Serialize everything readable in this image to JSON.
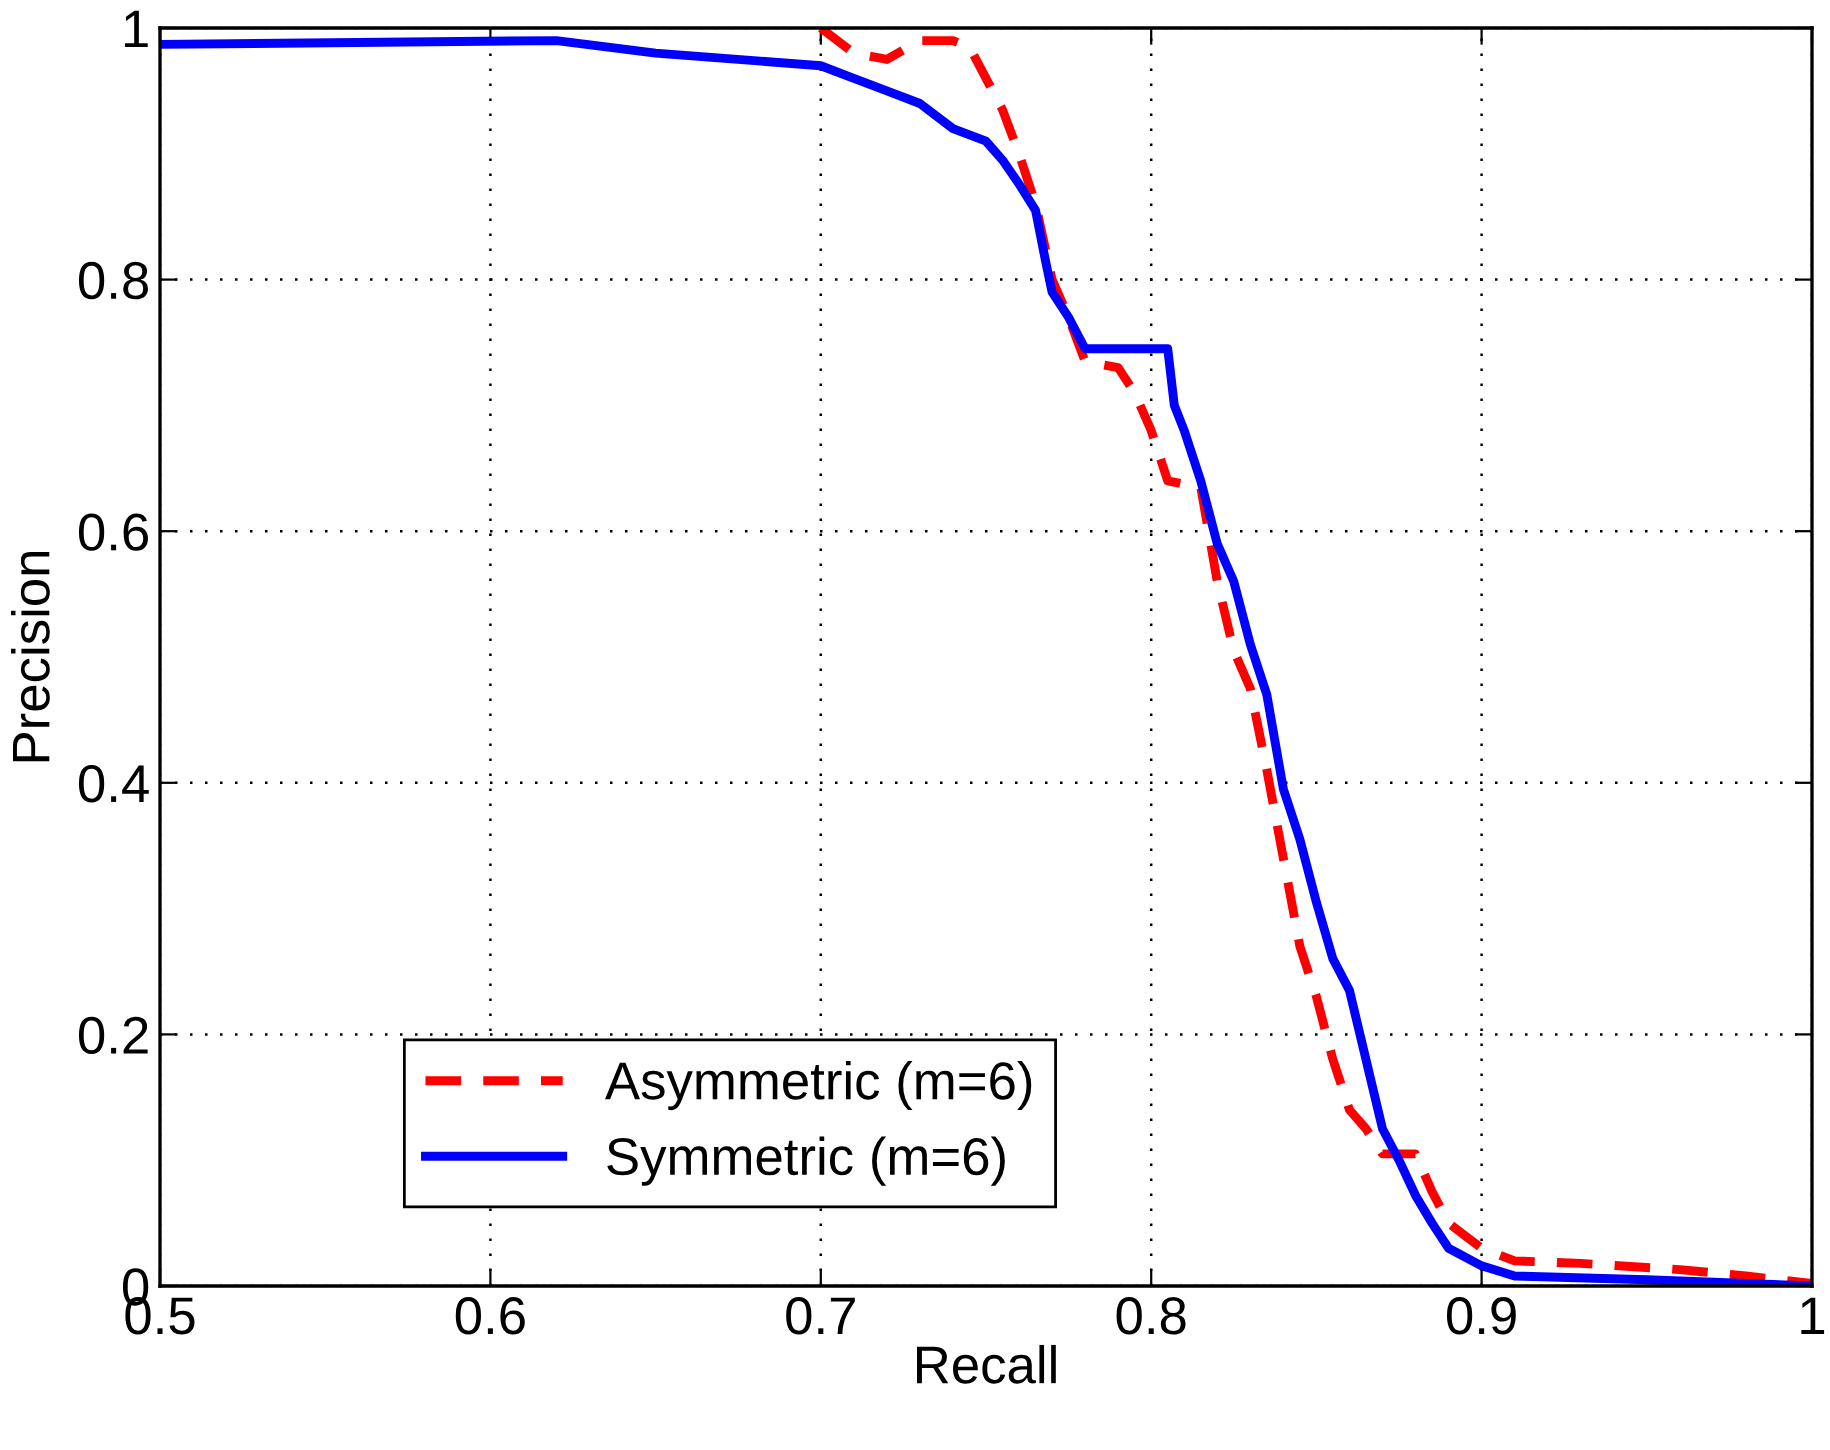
{
  "chart_data": {
    "type": "line",
    "xlabel": "Recall",
    "ylabel": "Precision",
    "xlim": [
      0.5,
      1
    ],
    "ylim": [
      0,
      1
    ],
    "xticks": [
      0.5,
      0.6,
      0.7,
      0.8,
      0.9,
      1
    ],
    "yticks": [
      0,
      0.2,
      0.4,
      0.6,
      0.8,
      1
    ],
    "grid": true,
    "legend": "bottom left",
    "series": [
      {
        "name": "Asymmetric (m=6)",
        "color": "#ff0000",
        "line_style": "dashed",
        "x": [
          0.7,
          0.71,
          0.72,
          0.73,
          0.74,
          0.745,
          0.75,
          0.755,
          0.76,
          0.765,
          0.77,
          0.775,
          0.78,
          0.79,
          0.795,
          0.8,
          0.805,
          0.815,
          0.82,
          0.825,
          0.83,
          0.835,
          0.84,
          0.845,
          0.85,
          0.855,
          0.86,
          0.865,
          0.87,
          0.875,
          0.88,
          0.885,
          0.89,
          0.895,
          0.9,
          0.91,
          0.93,
          0.96,
          0.98,
          1.0
        ],
        "values": [
          1.0,
          0.98,
          0.975,
          0.99,
          0.99,
          0.985,
          0.96,
          0.935,
          0.9,
          0.86,
          0.8,
          0.77,
          0.735,
          0.73,
          0.71,
          0.68,
          0.64,
          0.635,
          0.56,
          0.505,
          0.475,
          0.41,
          0.34,
          0.27,
          0.23,
          0.18,
          0.14,
          0.125,
          0.105,
          0.105,
          0.105,
          0.075,
          0.05,
          0.04,
          0.03,
          0.02,
          0.018,
          0.013,
          0.008,
          0.002
        ]
      },
      {
        "name": "Symmetric (m=6)",
        "color": "#0000ff",
        "line_style": "solid",
        "x": [
          0.5,
          0.62,
          0.65,
          0.7,
          0.71,
          0.72,
          0.73,
          0.74,
          0.75,
          0.755,
          0.76,
          0.765,
          0.768,
          0.77,
          0.775,
          0.78,
          0.805,
          0.807,
          0.81,
          0.815,
          0.82,
          0.825,
          0.83,
          0.835,
          0.84,
          0.845,
          0.85,
          0.855,
          0.86,
          0.865,
          0.87,
          0.875,
          0.88,
          0.885,
          0.89,
          0.9,
          0.91,
          0.95,
          1.0
        ],
        "values": [
          0.987,
          0.99,
          0.98,
          0.97,
          0.96,
          0.95,
          0.94,
          0.92,
          0.91,
          0.895,
          0.876,
          0.855,
          0.815,
          0.79,
          0.77,
          0.745,
          0.745,
          0.7,
          0.68,
          0.64,
          0.59,
          0.56,
          0.51,
          0.47,
          0.395,
          0.355,
          0.305,
          0.26,
          0.235,
          0.18,
          0.125,
          0.1,
          0.072,
          0.05,
          0.03,
          0.016,
          0.008,
          0.005,
          0.0
        ]
      }
    ]
  }
}
